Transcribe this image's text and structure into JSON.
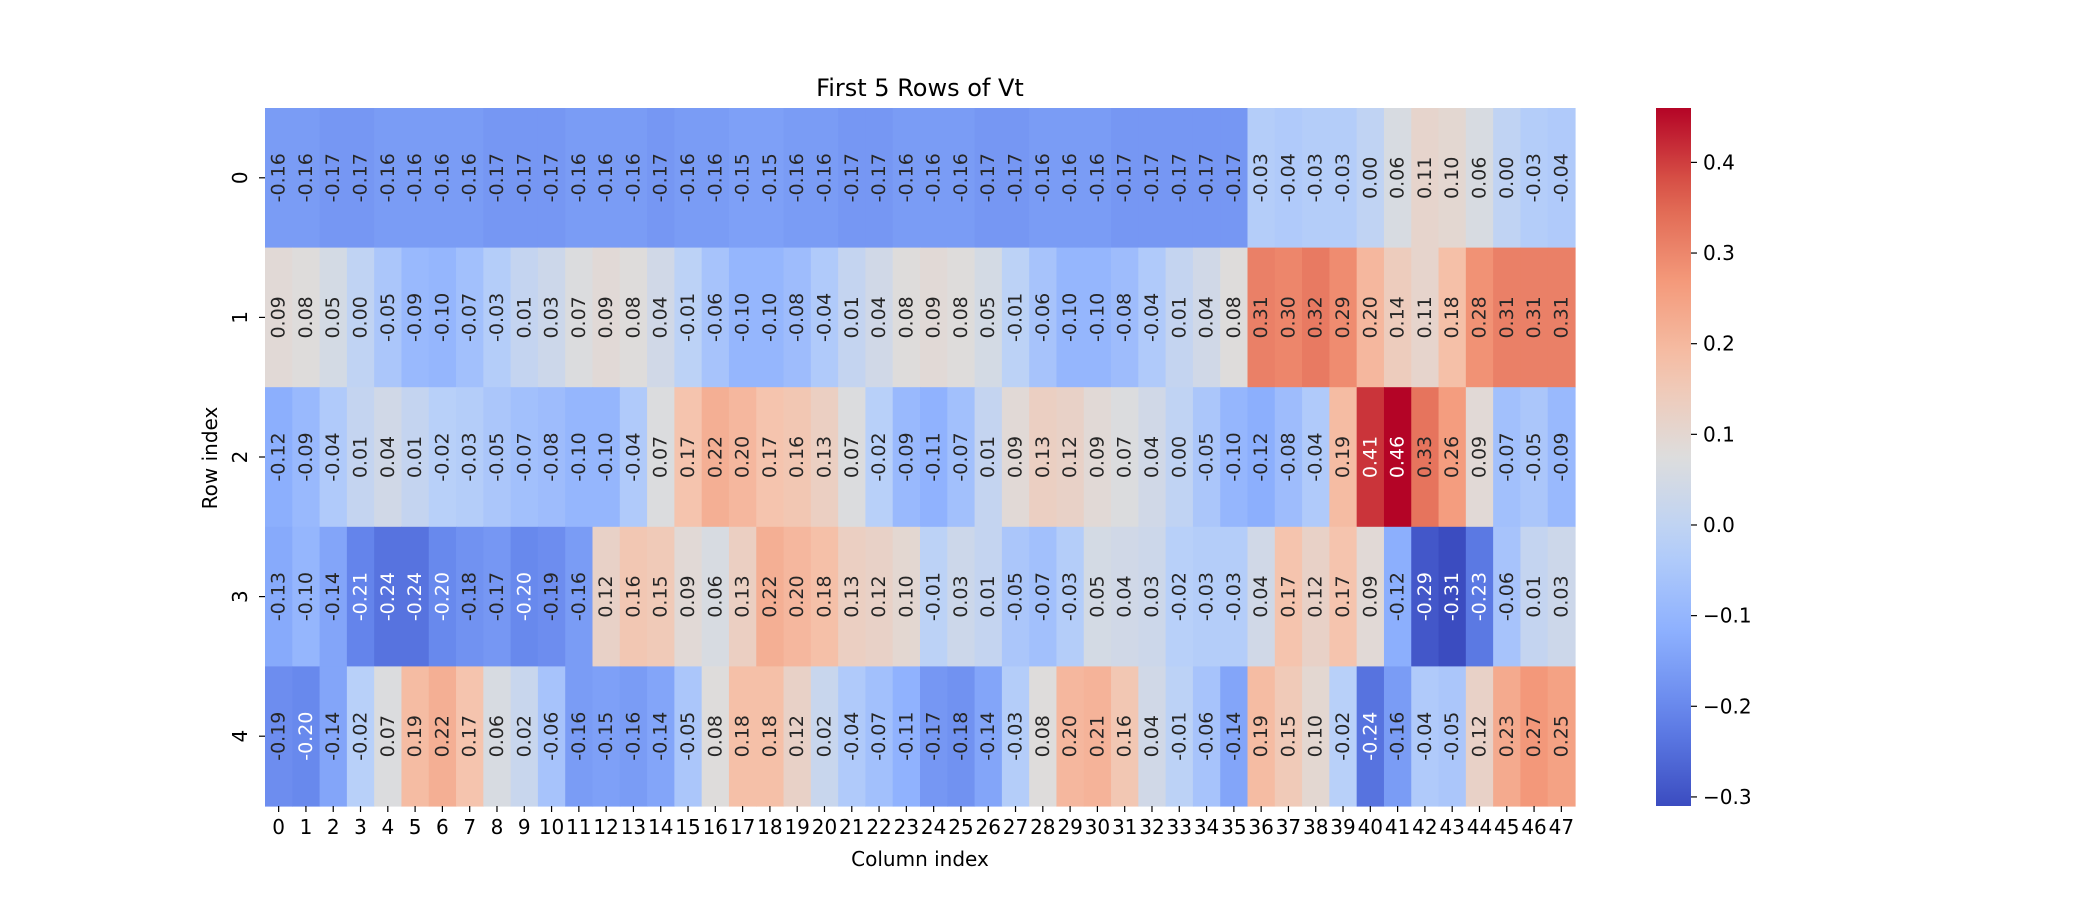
{
  "chart_data": {
    "type": "heatmap",
    "title": "First 5 Rows of Vt",
    "xlabel": "Column index",
    "ylabel": "Row index",
    "x_categories": [
      "0",
      "1",
      "2",
      "3",
      "4",
      "5",
      "6",
      "7",
      "8",
      "9",
      "10",
      "11",
      "12",
      "13",
      "14",
      "15",
      "16",
      "17",
      "18",
      "19",
      "20",
      "21",
      "22",
      "23",
      "24",
      "25",
      "26",
      "27",
      "28",
      "29",
      "30",
      "31",
      "32",
      "33",
      "34",
      "35",
      "36",
      "37",
      "38",
      "39",
      "40",
      "41",
      "42",
      "43",
      "44",
      "45",
      "46",
      "47"
    ],
    "y_categories": [
      "0",
      "1",
      "2",
      "3",
      "4"
    ],
    "values": [
      [
        -0.16,
        -0.16,
        -0.17,
        -0.17,
        -0.16,
        -0.16,
        -0.16,
        -0.16,
        -0.17,
        -0.17,
        -0.17,
        -0.16,
        -0.16,
        -0.16,
        -0.17,
        -0.16,
        -0.16,
        -0.15,
        -0.15,
        -0.16,
        -0.16,
        -0.17,
        -0.17,
        -0.16,
        -0.16,
        -0.16,
        -0.17,
        -0.17,
        -0.16,
        -0.16,
        -0.16,
        -0.17,
        -0.17,
        -0.17,
        -0.17,
        -0.17,
        -0.03,
        -0.04,
        -0.03,
        -0.03,
        -0.0,
        0.06,
        0.11,
        0.1,
        0.06,
        -0.0,
        -0.03,
        -0.04
      ],
      [
        0.09,
        0.08,
        0.05,
        -0.0,
        -0.05,
        -0.09,
        -0.1,
        -0.07,
        -0.03,
        0.01,
        0.03,
        0.07,
        0.09,
        0.08,
        0.04,
        -0.01,
        -0.06,
        -0.1,
        -0.1,
        -0.08,
        -0.04,
        0.01,
        0.04,
        0.08,
        0.09,
        0.08,
        0.05,
        -0.01,
        -0.06,
        -0.1,
        -0.1,
        -0.08,
        -0.04,
        0.01,
        0.04,
        0.08,
        0.31,
        0.3,
        0.32,
        0.29,
        0.2,
        0.14,
        0.11,
        0.18,
        0.28,
        0.31,
        0.31,
        0.31
      ],
      [
        -0.12,
        -0.09,
        -0.04,
        0.01,
        0.04,
        0.01,
        -0.02,
        -0.03,
        -0.05,
        -0.07,
        -0.08,
        -0.1,
        -0.1,
        -0.04,
        0.07,
        0.17,
        0.22,
        0.2,
        0.17,
        0.16,
        0.13,
        0.07,
        -0.02,
        -0.09,
        -0.11,
        -0.07,
        0.01,
        0.09,
        0.13,
        0.12,
        0.09,
        0.07,
        0.04,
        0.0,
        -0.05,
        -0.1,
        -0.12,
        -0.08,
        -0.04,
        0.19,
        0.41,
        0.46,
        0.33,
        0.26,
        0.09,
        -0.07,
        -0.05,
        -0.09
      ],
      [
        -0.13,
        -0.1,
        -0.14,
        -0.21,
        -0.24,
        -0.24,
        -0.2,
        -0.18,
        -0.17,
        -0.2,
        -0.19,
        -0.16,
        0.12,
        0.16,
        0.15,
        0.09,
        0.06,
        0.13,
        0.22,
        0.2,
        0.18,
        0.13,
        0.12,
        0.1,
        -0.01,
        0.03,
        0.01,
        -0.05,
        -0.07,
        -0.03,
        0.05,
        0.04,
        0.03,
        -0.02,
        -0.03,
        -0.03,
        0.04,
        0.17,
        0.12,
        0.17,
        0.09,
        -0.12,
        -0.29,
        -0.31,
        -0.23,
        -0.06,
        0.01,
        0.03
      ],
      [
        -0.19,
        -0.2,
        -0.14,
        -0.02,
        0.07,
        0.19,
        0.22,
        0.17,
        0.06,
        0.02,
        -0.06,
        -0.16,
        -0.15,
        -0.16,
        -0.14,
        -0.05,
        0.08,
        0.18,
        0.18,
        0.12,
        0.02,
        -0.04,
        -0.07,
        -0.11,
        -0.17,
        -0.18,
        -0.14,
        -0.03,
        0.08,
        0.2,
        0.21,
        0.16,
        0.04,
        -0.01,
        -0.06,
        -0.14,
        0.19,
        0.15,
        0.1,
        -0.02,
        -0.24,
        -0.16,
        -0.04,
        -0.05,
        0.12,
        0.23,
        0.27,
        0.25
      ]
    ],
    "colormap": "coolwarm",
    "vmin": -0.31,
    "vmax": 0.46,
    "colorbar_ticks": [
      -0.3,
      -0.2,
      -0.1,
      0.0,
      0.1,
      0.2,
      0.3,
      0.4
    ],
    "colorbar_tick_labels": [
      "−0.3",
      "−0.2",
      "−0.1",
      "0.0",
      "0.1",
      "0.2",
      "0.3",
      "0.4"
    ],
    "annotations": true,
    "annotation_format": "0.00",
    "grid": false
  }
}
